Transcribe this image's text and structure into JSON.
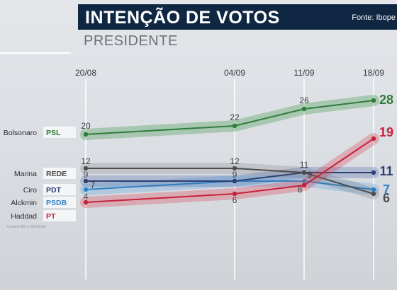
{
  "header": {
    "title": "INTENÇÃO DE VOTOS",
    "source": "Fonte: Ibope"
  },
  "subtitle": "PRESIDENTE",
  "colors": {
    "header_bg": "#0f2742",
    "bolsonaro": "#2e7d3b",
    "marina": "#4d4d4d",
    "ciro": "#2b3f73",
    "alckmin": "#2f84c7",
    "haddad": "#c7213a"
  },
  "chart_data": {
    "type": "line",
    "x": [
      "20/08",
      "04/09",
      "11/09",
      "18/09"
    ],
    "series": [
      {
        "name": "Bolsonaro",
        "party": "PSL",
        "values": [
          20,
          22,
          26,
          28
        ]
      },
      {
        "name": "Marina",
        "party": "REDE",
        "values": [
          12,
          12,
          11,
          6
        ]
      },
      {
        "name": "Ciro",
        "party": "PDT",
        "values": [
          9,
          9,
          11,
          11
        ]
      },
      {
        "name": "Alckmin",
        "party": "PSDB",
        "values": [
          7,
          9,
          9,
          7
        ]
      },
      {
        "name": "Haddad",
        "party": "PT",
        "values": [
          4,
          6,
          8,
          19
        ]
      }
    ],
    "labels": [
      {
        "series": "Bolsonaro",
        "texts": [
          "20",
          "22",
          "26",
          "28"
        ]
      },
      {
        "series": "Marina",
        "texts": [
          "12",
          "12",
          "11",
          "6"
        ]
      },
      {
        "series": "Ciro",
        "texts": [
          "9",
          "9",
          "",
          "11"
        ]
      },
      {
        "series": "Alckmin",
        "texts": [
          "7",
          "",
          "9",
          "7"
        ]
      },
      {
        "series": "Haddad",
        "texts": [
          "4",
          "6",
          "8",
          "19"
        ]
      }
    ]
  },
  "footnote": "Cenário BR-1 (02.09.18)"
}
